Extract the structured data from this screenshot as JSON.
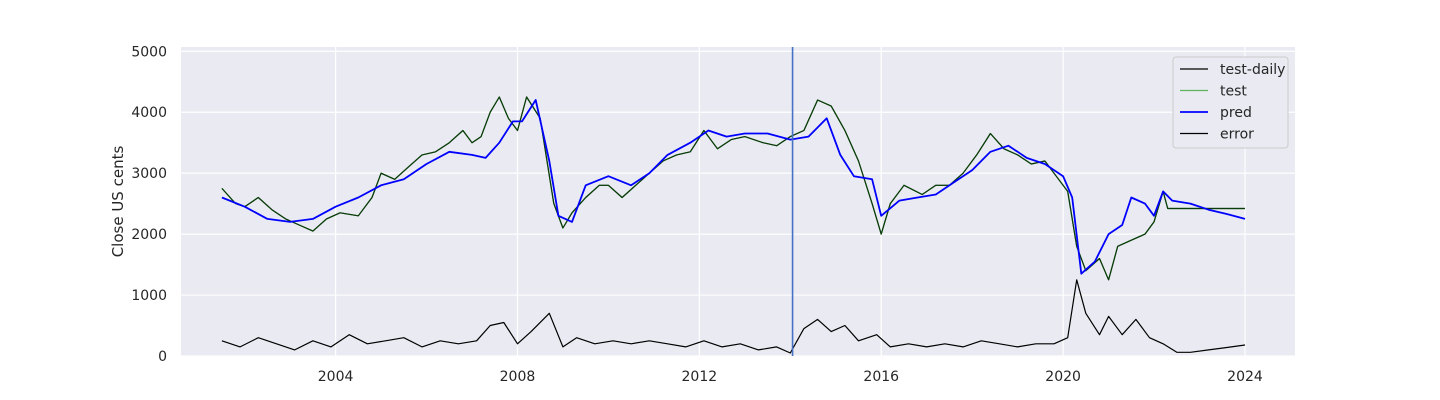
{
  "chart_data": {
    "type": "line",
    "ylabel": "Close US cents",
    "xlabel": "",
    "title": "",
    "xlim": [
      2000.6,
      2025.1
    ],
    "ylim": [
      0,
      5070
    ],
    "x_ticks": [
      2004,
      2008,
      2012,
      2016,
      2020,
      2024
    ],
    "x_tick_labels": [
      "2004",
      "2008",
      "2012",
      "2016",
      "2020",
      "2024"
    ],
    "y_ticks": [
      0,
      1000,
      2000,
      3000,
      4000,
      5000
    ],
    "y_tick_labels": [
      "0",
      "1000",
      "2000",
      "3000",
      "4000",
      "5000"
    ],
    "grid": true,
    "legend_position": "top-right",
    "vline_x": 2014.05,
    "series": [
      {
        "name": "test-daily",
        "color": "#000000",
        "values": [
          [
            2001.5,
            2750
          ],
          [
            2001.8,
            2500
          ],
          [
            2002.0,
            2450
          ],
          [
            2002.3,
            2600
          ],
          [
            2002.6,
            2400
          ],
          [
            2002.9,
            2250
          ],
          [
            2003.2,
            2150
          ],
          [
            2003.5,
            2050
          ],
          [
            2003.8,
            2250
          ],
          [
            2004.1,
            2350
          ],
          [
            2004.5,
            2300
          ],
          [
            2004.8,
            2600
          ],
          [
            2005.0,
            3000
          ],
          [
            2005.3,
            2900
          ],
          [
            2005.6,
            3100
          ],
          [
            2005.9,
            3300
          ],
          [
            2006.2,
            3350
          ],
          [
            2006.5,
            3500
          ],
          [
            2006.8,
            3700
          ],
          [
            2007.0,
            3500
          ],
          [
            2007.2,
            3600
          ],
          [
            2007.4,
            4000
          ],
          [
            2007.6,
            4250
          ],
          [
            2007.8,
            3900
          ],
          [
            2008.0,
            3700
          ],
          [
            2008.2,
            4250
          ],
          [
            2008.5,
            3900
          ],
          [
            2008.8,
            2500
          ],
          [
            2009.0,
            2100
          ],
          [
            2009.2,
            2350
          ],
          [
            2009.5,
            2600
          ],
          [
            2009.8,
            2800
          ],
          [
            2010.0,
            2800
          ],
          [
            2010.3,
            2600
          ],
          [
            2010.6,
            2800
          ],
          [
            2010.9,
            3000
          ],
          [
            2011.2,
            3200
          ],
          [
            2011.5,
            3300
          ],
          [
            2011.8,
            3350
          ],
          [
            2012.1,
            3700
          ],
          [
            2012.4,
            3400
          ],
          [
            2012.7,
            3550
          ],
          [
            2013.0,
            3600
          ],
          [
            2013.4,
            3500
          ],
          [
            2013.7,
            3450
          ],
          [
            2014.0,
            3600
          ],
          [
            2014.3,
            3700
          ],
          [
            2014.6,
            4200
          ],
          [
            2014.9,
            4100
          ],
          [
            2015.2,
            3700
          ],
          [
            2015.5,
            3200
          ],
          [
            2015.8,
            2500
          ],
          [
            2016.0,
            2000
          ],
          [
            2016.2,
            2500
          ],
          [
            2016.5,
            2800
          ],
          [
            2016.9,
            2650
          ],
          [
            2017.2,
            2800
          ],
          [
            2017.5,
            2800
          ],
          [
            2017.8,
            3000
          ],
          [
            2018.1,
            3300
          ],
          [
            2018.4,
            3650
          ],
          [
            2018.7,
            3400
          ],
          [
            2019.0,
            3300
          ],
          [
            2019.3,
            3150
          ],
          [
            2019.6,
            3200
          ],
          [
            2019.9,
            2900
          ],
          [
            2020.1,
            2700
          ],
          [
            2020.3,
            1800
          ],
          [
            2020.5,
            1400
          ],
          [
            2020.8,
            1600
          ],
          [
            2021.0,
            1250
          ],
          [
            2021.2,
            1800
          ],
          [
            2021.5,
            1900
          ],
          [
            2021.8,
            2000
          ],
          [
            2022.0,
            2200
          ],
          [
            2022.2,
            2700
          ],
          [
            2022.3,
            2420
          ],
          [
            2024.0,
            2420
          ]
        ]
      },
      {
        "name": "test",
        "color": "#1a5c1a",
        "values": [
          [
            2001.5,
            2750
          ],
          [
            2001.8,
            2500
          ],
          [
            2002.0,
            2450
          ],
          [
            2002.3,
            2600
          ],
          [
            2002.6,
            2400
          ],
          [
            2002.9,
            2250
          ],
          [
            2003.2,
            2150
          ],
          [
            2003.5,
            2050
          ],
          [
            2003.8,
            2250
          ],
          [
            2004.1,
            2350
          ],
          [
            2004.5,
            2300
          ],
          [
            2004.8,
            2600
          ],
          [
            2005.0,
            3000
          ],
          [
            2005.3,
            2900
          ],
          [
            2005.6,
            3100
          ],
          [
            2005.9,
            3300
          ],
          [
            2006.2,
            3350
          ],
          [
            2006.5,
            3500
          ],
          [
            2006.8,
            3700
          ],
          [
            2007.0,
            3500
          ],
          [
            2007.2,
            3600
          ],
          [
            2007.4,
            4000
          ],
          [
            2007.6,
            4250
          ],
          [
            2007.8,
            3900
          ],
          [
            2008.0,
            3700
          ],
          [
            2008.2,
            4250
          ],
          [
            2008.5,
            3900
          ],
          [
            2008.8,
            2500
          ],
          [
            2009.0,
            2100
          ],
          [
            2009.2,
            2350
          ],
          [
            2009.5,
            2600
          ],
          [
            2009.8,
            2800
          ],
          [
            2010.0,
            2800
          ],
          [
            2010.3,
            2600
          ],
          [
            2010.6,
            2800
          ],
          [
            2010.9,
            3000
          ],
          [
            2011.2,
            3200
          ],
          [
            2011.5,
            3300
          ],
          [
            2011.8,
            3350
          ],
          [
            2012.1,
            3700
          ],
          [
            2012.4,
            3400
          ],
          [
            2012.7,
            3550
          ],
          [
            2013.0,
            3600
          ],
          [
            2013.4,
            3500
          ],
          [
            2013.7,
            3450
          ],
          [
            2014.0,
            3600
          ],
          [
            2014.3,
            3700
          ],
          [
            2014.6,
            4200
          ],
          [
            2014.9,
            4100
          ],
          [
            2015.2,
            3700
          ],
          [
            2015.5,
            3200
          ],
          [
            2015.8,
            2500
          ],
          [
            2016.0,
            2000
          ],
          [
            2016.2,
            2500
          ],
          [
            2016.5,
            2800
          ],
          [
            2016.9,
            2650
          ],
          [
            2017.2,
            2800
          ],
          [
            2017.5,
            2800
          ],
          [
            2017.8,
            3000
          ],
          [
            2018.1,
            3300
          ],
          [
            2018.4,
            3650
          ],
          [
            2018.7,
            3400
          ],
          [
            2019.0,
            3300
          ],
          [
            2019.3,
            3150
          ],
          [
            2019.6,
            3200
          ],
          [
            2019.9,
            2900
          ],
          [
            2020.1,
            2700
          ],
          [
            2020.3,
            1800
          ],
          [
            2020.5,
            1400
          ],
          [
            2020.8,
            1600
          ],
          [
            2021.0,
            1250
          ],
          [
            2021.2,
            1800
          ],
          [
            2021.5,
            1900
          ],
          [
            2021.8,
            2000
          ],
          [
            2022.0,
            2200
          ],
          [
            2022.2,
            2700
          ],
          [
            2022.3,
            2420
          ],
          [
            2024.0,
            2420
          ]
        ]
      },
      {
        "name": "pred",
        "color": "#0000ff",
        "values": [
          [
            2001.5,
            2600
          ],
          [
            2002.0,
            2450
          ],
          [
            2002.5,
            2250
          ],
          [
            2003.0,
            2200
          ],
          [
            2003.5,
            2250
          ],
          [
            2004.0,
            2450
          ],
          [
            2004.5,
            2600
          ],
          [
            2005.0,
            2800
          ],
          [
            2005.5,
            2900
          ],
          [
            2006.0,
            3150
          ],
          [
            2006.5,
            3350
          ],
          [
            2007.0,
            3300
          ],
          [
            2007.3,
            3250
          ],
          [
            2007.6,
            3500
          ],
          [
            2007.9,
            3850
          ],
          [
            2008.1,
            3850
          ],
          [
            2008.4,
            4200
          ],
          [
            2008.7,
            3200
          ],
          [
            2008.9,
            2300
          ],
          [
            2009.2,
            2200
          ],
          [
            2009.5,
            2800
          ],
          [
            2010.0,
            2950
          ],
          [
            2010.5,
            2800
          ],
          [
            2010.9,
            3000
          ],
          [
            2011.3,
            3300
          ],
          [
            2011.8,
            3500
          ],
          [
            2012.2,
            3700
          ],
          [
            2012.6,
            3600
          ],
          [
            2013.0,
            3650
          ],
          [
            2013.5,
            3650
          ],
          [
            2014.0,
            3550
          ],
          [
            2014.4,
            3600
          ],
          [
            2014.8,
            3900
          ],
          [
            2015.1,
            3300
          ],
          [
            2015.4,
            2950
          ],
          [
            2015.8,
            2900
          ],
          [
            2016.0,
            2300
          ],
          [
            2016.4,
            2550
          ],
          [
            2016.8,
            2600
          ],
          [
            2017.2,
            2650
          ],
          [
            2017.6,
            2850
          ],
          [
            2018.0,
            3050
          ],
          [
            2018.4,
            3350
          ],
          [
            2018.8,
            3450
          ],
          [
            2019.2,
            3250
          ],
          [
            2019.6,
            3150
          ],
          [
            2020.0,
            2950
          ],
          [
            2020.2,
            2600
          ],
          [
            2020.4,
            1350
          ],
          [
            2020.7,
            1550
          ],
          [
            2021.0,
            2000
          ],
          [
            2021.3,
            2150
          ],
          [
            2021.5,
            2600
          ],
          [
            2021.8,
            2500
          ],
          [
            2022.0,
            2300
          ],
          [
            2022.2,
            2700
          ],
          [
            2022.4,
            2550
          ],
          [
            2022.8,
            2500
          ],
          [
            2023.2,
            2400
          ],
          [
            2023.6,
            2330
          ],
          [
            2024.0,
            2250
          ]
        ]
      },
      {
        "name": "error",
        "color": "#000000",
        "values": [
          [
            2001.5,
            250
          ],
          [
            2001.9,
            150
          ],
          [
            2002.3,
            300
          ],
          [
            2002.7,
            200
          ],
          [
            2003.1,
            100
          ],
          [
            2003.5,
            250
          ],
          [
            2003.9,
            150
          ],
          [
            2004.3,
            350
          ],
          [
            2004.7,
            200
          ],
          [
            2005.1,
            250
          ],
          [
            2005.5,
            300
          ],
          [
            2005.9,
            150
          ],
          [
            2006.3,
            250
          ],
          [
            2006.7,
            200
          ],
          [
            2007.1,
            250
          ],
          [
            2007.4,
            500
          ],
          [
            2007.7,
            550
          ],
          [
            2008.0,
            200
          ],
          [
            2008.3,
            400
          ],
          [
            2008.7,
            700
          ],
          [
            2009.0,
            150
          ],
          [
            2009.3,
            300
          ],
          [
            2009.7,
            200
          ],
          [
            2010.1,
            250
          ],
          [
            2010.5,
            200
          ],
          [
            2010.9,
            250
          ],
          [
            2011.3,
            200
          ],
          [
            2011.7,
            150
          ],
          [
            2012.1,
            250
          ],
          [
            2012.5,
            150
          ],
          [
            2012.9,
            200
          ],
          [
            2013.3,
            100
          ],
          [
            2013.7,
            150
          ],
          [
            2014.0,
            50
          ],
          [
            2014.3,
            450
          ],
          [
            2014.6,
            600
          ],
          [
            2014.9,
            400
          ],
          [
            2015.2,
            500
          ],
          [
            2015.5,
            250
          ],
          [
            2015.9,
            350
          ],
          [
            2016.2,
            150
          ],
          [
            2016.6,
            200
          ],
          [
            2017.0,
            150
          ],
          [
            2017.4,
            200
          ],
          [
            2017.8,
            150
          ],
          [
            2018.2,
            250
          ],
          [
            2018.6,
            200
          ],
          [
            2019.0,
            150
          ],
          [
            2019.4,
            200
          ],
          [
            2019.8,
            200
          ],
          [
            2020.1,
            300
          ],
          [
            2020.3,
            1250
          ],
          [
            2020.5,
            700
          ],
          [
            2020.8,
            350
          ],
          [
            2021.0,
            650
          ],
          [
            2021.3,
            350
          ],
          [
            2021.6,
            600
          ],
          [
            2021.9,
            300
          ],
          [
            2022.2,
            200
          ],
          [
            2022.5,
            60
          ],
          [
            2022.8,
            60
          ],
          [
            2023.2,
            100
          ],
          [
            2023.6,
            140
          ],
          [
            2024.0,
            180
          ]
        ]
      }
    ]
  }
}
